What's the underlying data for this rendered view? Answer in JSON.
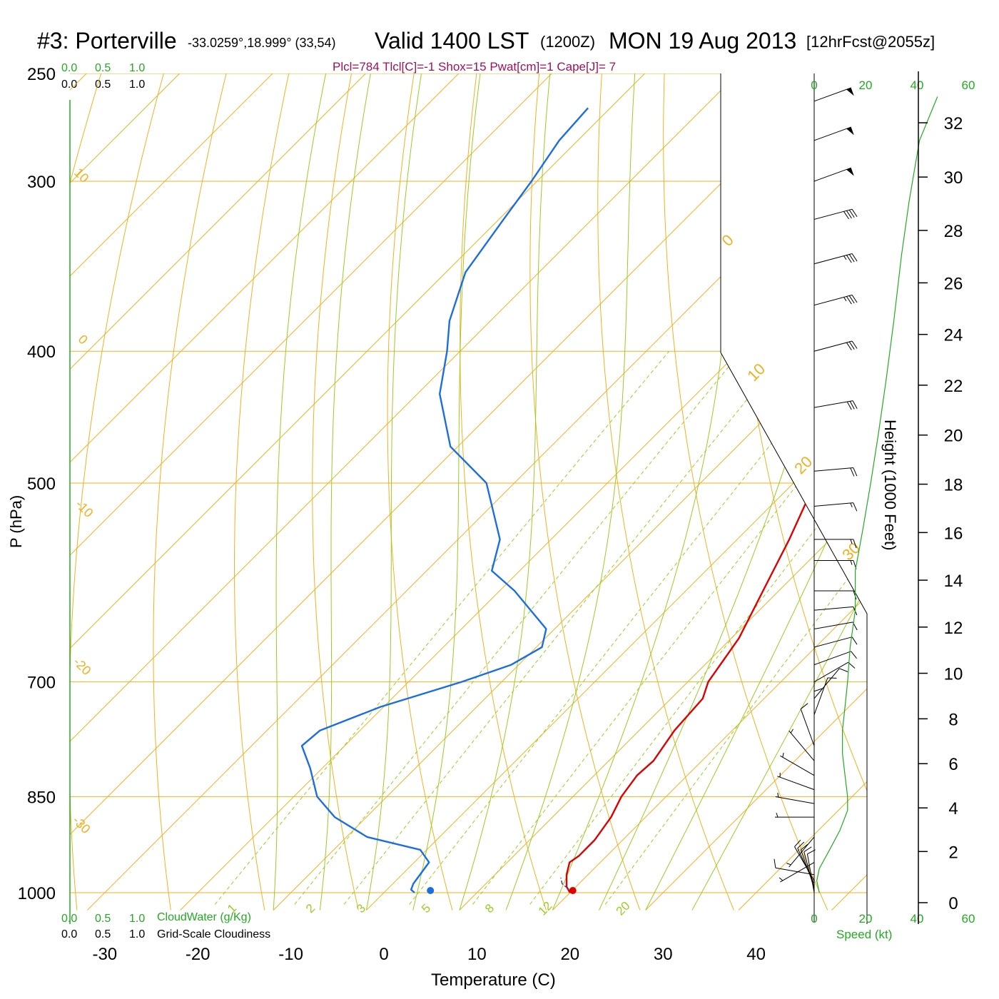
{
  "header": {
    "station": "#3: Porterville",
    "coords": "-33.0259°,18.999° (33,54)",
    "valid": "Valid 1400 LST",
    "zulu": "(1200Z)",
    "date": "MON 19 Aug 2013",
    "forecast": "[12hrFcst@2055z]"
  },
  "indices": "Plcl=784 Tlcl[C]=-1 Shox=15 Pwat[cm]=1 Cape[J]= 7",
  "scales": {
    "green_top": [
      "0.0",
      "0.5",
      "1.0"
    ],
    "black_top": [
      "0.0",
      "0.5",
      "1.0"
    ],
    "green_bottom": [
      "0.0",
      "0.5",
      "1.0"
    ],
    "black_bottom": [
      "0.0",
      "0.5",
      "1.0"
    ],
    "cloudwater_label": "CloudWater (g/Kg)",
    "cloudiness_label": "Grid-Scale Cloudiness"
  },
  "colors": {
    "temperature": "#dd0000",
    "dewpoint": "#1a6ee0",
    "isobar": "#f0b020",
    "dry_adiabat": "#f0b020",
    "moist_adiabat": "#99cc22",
    "mixing_ratio": "#99cc22",
    "speed_profile": "#22aa22"
  },
  "chart_data": {
    "type": "line",
    "xlabel": "Temperature (C)",
    "ylabel": "P (hPa)",
    "xlim": [
      -33,
      46
    ],
    "ylim": [
      1030,
      250
    ],
    "y_scale": "log",
    "skew": "45-degree skewed temperature axis",
    "x_ticks": [
      "-30",
      "-20",
      "-10",
      "0",
      "10",
      "20",
      "30",
      "40"
    ],
    "p_ticks": [
      "250",
      "300",
      "400",
      "500",
      "700",
      "850",
      "1000"
    ],
    "isotherm_labels": [
      "0",
      "10",
      "20",
      "30"
    ],
    "dry_adiabat_labels": [
      "10",
      "0",
      "-10",
      "-20",
      "-30"
    ],
    "mixing_ratio_labels": [
      "1",
      "2",
      "3",
      "5",
      "8",
      "12",
      "20"
    ],
    "series": [
      {
        "key": "temperature",
        "points": [
          {
            "p": 1000,
            "t": 20.0
          },
          {
            "p": 990,
            "t": 19.0
          },
          {
            "p": 970,
            "t": 17.7
          },
          {
            "p": 950,
            "t": 16.7
          },
          {
            "p": 940,
            "t": 17.0
          },
          {
            "p": 915,
            "t": 17.0
          },
          {
            "p": 880,
            "t": 16.3
          },
          {
            "p": 850,
            "t": 15.2
          },
          {
            "p": 820,
            "t": 14.6
          },
          {
            "p": 800,
            "t": 14.8
          },
          {
            "p": 760,
            "t": 13.8
          },
          {
            "p": 720,
            "t": 13.4
          },
          {
            "p": 700,
            "t": 12.2
          },
          {
            "p": 650,
            "t": 10.8
          },
          {
            "p": 600,
            "t": 8.3
          },
          {
            "p": 550,
            "t": 5.6
          },
          {
            "p": 500,
            "t": 2.3
          },
          {
            "p": 450,
            "t": -1.8
          },
          {
            "p": 400,
            "t": -6.9
          },
          {
            "p": 350,
            "t": -12.7
          },
          {
            "p": 300,
            "t": -20.4
          },
          {
            "p": 265,
            "t": -26.6
          }
        ]
      },
      {
        "key": "dewpoint",
        "points": [
          {
            "p": 1000,
            "t": 3.3
          },
          {
            "p": 995,
            "t": 2.6
          },
          {
            "p": 985,
            "t": 2.2
          },
          {
            "p": 950,
            "t": 1.6
          },
          {
            "p": 930,
            "t": -0.7
          },
          {
            "p": 910,
            "t": -7.8
          },
          {
            "p": 880,
            "t": -13.4
          },
          {
            "p": 850,
            "t": -17.5
          },
          {
            "p": 810,
            "t": -21.3
          },
          {
            "p": 780,
            "t": -24.6
          },
          {
            "p": 760,
            "t": -24.3
          },
          {
            "p": 730,
            "t": -20.3
          },
          {
            "p": 700,
            "t": -14.3
          },
          {
            "p": 680,
            "t": -10.8
          },
          {
            "p": 660,
            "t": -9.4
          },
          {
            "p": 640,
            "t": -10.9
          },
          {
            "p": 600,
            "t": -18.4
          },
          {
            "p": 580,
            "t": -23.0
          },
          {
            "p": 550,
            "t": -25.5
          },
          {
            "p": 500,
            "t": -33.0
          },
          {
            "p": 470,
            "t": -40.8
          },
          {
            "p": 430,
            "t": -47.6
          },
          {
            "p": 400,
            "t": -51.4
          },
          {
            "p": 380,
            "t": -54.4
          },
          {
            "p": 350,
            "t": -57.9
          },
          {
            "p": 320,
            "t": -59.5
          },
          {
            "p": 300,
            "t": -60.6
          },
          {
            "p": 280,
            "t": -62.0
          },
          {
            "p": 265,
            "t": -62.4
          }
        ]
      }
    ],
    "surface_temperature": 20.3,
    "surface_dewpoint": 5.0,
    "height_axis": {
      "label": "Height (1000 Feet)",
      "ticks": [
        "0",
        "2",
        "4",
        "6",
        "8",
        "10",
        "12",
        "14",
        "16",
        "18",
        "20",
        "22",
        "24",
        "26",
        "28",
        "30",
        "32"
      ]
    },
    "speed_axis": {
      "label": "Speed (kt)",
      "ticks": [
        "0",
        "20",
        "40",
        "60"
      ],
      "profile": [
        {
          "p": 1000,
          "s": 2
        },
        {
          "p": 980,
          "s": 1
        },
        {
          "p": 960,
          "s": 2
        },
        {
          "p": 930,
          "s": 6
        },
        {
          "p": 900,
          "s": 10
        },
        {
          "p": 870,
          "s": 13
        },
        {
          "p": 850,
          "s": 13
        },
        {
          "p": 820,
          "s": 12
        },
        {
          "p": 790,
          "s": 11
        },
        {
          "p": 760,
          "s": 11
        },
        {
          "p": 730,
          "s": 12
        },
        {
          "p": 700,
          "s": 13
        },
        {
          "p": 660,
          "s": 14
        },
        {
          "p": 620,
          "s": 16
        },
        {
          "p": 580,
          "s": 16
        },
        {
          "p": 540,
          "s": 19
        },
        {
          "p": 500,
          "s": 22
        },
        {
          "p": 460,
          "s": 25
        },
        {
          "p": 420,
          "s": 28
        },
        {
          "p": 380,
          "s": 31
        },
        {
          "p": 340,
          "s": 34
        },
        {
          "p": 310,
          "s": 37
        },
        {
          "p": 280,
          "s": 41
        },
        {
          "p": 260,
          "s": 48
        }
      ]
    },
    "wind_barbs": [
      {
        "p": 1000,
        "dir": 170,
        "spd": 10
      },
      {
        "p": 995,
        "dir": 165,
        "spd": 10
      },
      {
        "p": 990,
        "dir": 160,
        "spd": 10
      },
      {
        "p": 985,
        "dir": 155,
        "spd": 10
      },
      {
        "p": 980,
        "dir": 150,
        "spd": 10
      },
      {
        "p": 970,
        "dir": 100,
        "spd": 10
      },
      {
        "p": 950,
        "dir": 60,
        "spd": 5
      },
      {
        "p": 910,
        "dir": 40,
        "spd": 5
      },
      {
        "p": 880,
        "dir": 90,
        "spd": 5
      },
      {
        "p": 860,
        "dir": 100,
        "spd": 5
      },
      {
        "p": 840,
        "dir": 110,
        "spd": 5
      },
      {
        "p": 820,
        "dir": 120,
        "spd": 5
      },
      {
        "p": 800,
        "dir": 140,
        "spd": 5
      },
      {
        "p": 780,
        "dir": 160,
        "spd": 10
      },
      {
        "p": 760,
        "dir": 180,
        "spd": 10
      },
      {
        "p": 740,
        "dir": 200,
        "spd": 10
      },
      {
        "p": 720,
        "dir": 220,
        "spd": 10
      },
      {
        "p": 700,
        "dir": 240,
        "spd": 10
      },
      {
        "p": 680,
        "dir": 250,
        "spd": 10
      },
      {
        "p": 660,
        "dir": 255,
        "spd": 10
      },
      {
        "p": 640,
        "dir": 260,
        "spd": 10
      },
      {
        "p": 620,
        "dir": 265,
        "spd": 10
      },
      {
        "p": 600,
        "dir": 270,
        "spd": 10
      },
      {
        "p": 570,
        "dir": 270,
        "spd": 15
      },
      {
        "p": 550,
        "dir": 270,
        "spd": 15
      },
      {
        "p": 520,
        "dir": 265,
        "spd": 15
      },
      {
        "p": 490,
        "dir": 265,
        "spd": 20
      },
      {
        "p": 440,
        "dir": 260,
        "spd": 30
      },
      {
        "p": 400,
        "dir": 255,
        "spd": 30
      },
      {
        "p": 370,
        "dir": 255,
        "spd": 35
      },
      {
        "p": 345,
        "dir": 255,
        "spd": 35
      },
      {
        "p": 320,
        "dir": 255,
        "spd": 40
      },
      {
        "p": 300,
        "dir": 250,
        "spd": 50
      },
      {
        "p": 280,
        "dir": 250,
        "spd": 50
      },
      {
        "p": 262,
        "dir": 250,
        "spd": 50
      }
    ]
  }
}
